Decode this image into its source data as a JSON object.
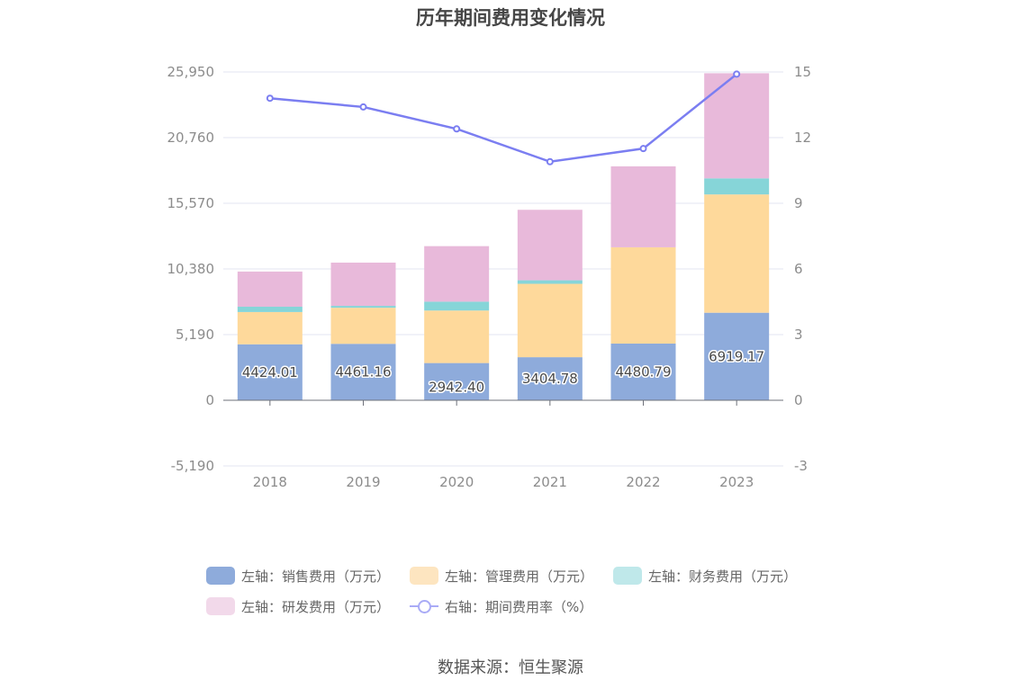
{
  "chart_data": {
    "type": "bar",
    "title": "历年期间费用变化情况",
    "categories": [
      "2018",
      "2019",
      "2020",
      "2021",
      "2022",
      "2023"
    ],
    "stacked": true,
    "series": [
      {
        "name": "左轴：销售费用（万元）",
        "axis": "left",
        "type": "bar",
        "color": "#8eabdb",
        "values": [
          4424.01,
          4461.16,
          2942.4,
          3404.78,
          4480.79,
          6919.17
        ],
        "labels": [
          "4424.01",
          "4461.16",
          "2942.40",
          "3404.78",
          "4480.79",
          "6919.17"
        ]
      },
      {
        "name": "左轴：管理费用（万元）",
        "axis": "left",
        "type": "bar",
        "color": "#fed99b",
        "values": [
          2550,
          2850,
          4150,
          5800,
          7610,
          9350
        ]
      },
      {
        "name": "左轴：财务费用（万元）",
        "axis": "left",
        "type": "bar",
        "color": "#86d5d8",
        "values": [
          420,
          150,
          700,
          280,
          -30,
          1270
        ]
      },
      {
        "name": "左轴：研发费用（万元）",
        "axis": "left",
        "type": "bar",
        "color": "#e8b9da",
        "values": [
          2780,
          3420,
          4390,
          5570,
          6400,
          8310
        ]
      },
      {
        "name": "右轴：期间费用率（%）",
        "axis": "right",
        "type": "line",
        "color": "#7b7ef1",
        "values": [
          13.8,
          13.4,
          12.4,
          10.9,
          11.5,
          14.9
        ]
      }
    ],
    "y_left": {
      "ticks": [
        "-5,190",
        "0",
        "5,190",
        "10,380",
        "15,570",
        "20,760",
        "25,950"
      ],
      "min": -5190,
      "max": 25950
    },
    "y_right": {
      "ticks": [
        "-3",
        "0",
        "3",
        "6",
        "9",
        "12",
        "15"
      ],
      "min": -3,
      "max": 15
    },
    "grid": true,
    "legend_position": "bottom"
  },
  "legend": [
    {
      "label": "左轴：销售费用（万元）",
      "color": "#8eabdb",
      "kind": "swatch"
    },
    {
      "label": "左轴：管理费用（万元）",
      "color": "#fde5c0",
      "kind": "swatch"
    },
    {
      "label": "左轴：财务费用（万元）",
      "color": "#bfe8ea",
      "kind": "swatch"
    },
    {
      "label": "左轴：研发费用（万元）",
      "color": "#f2d9ea",
      "kind": "swatch"
    },
    {
      "label": "右轴：期间费用率（%）",
      "color": "#a9abf6",
      "kind": "line"
    }
  ],
  "source": "数据来源：恒生聚源"
}
